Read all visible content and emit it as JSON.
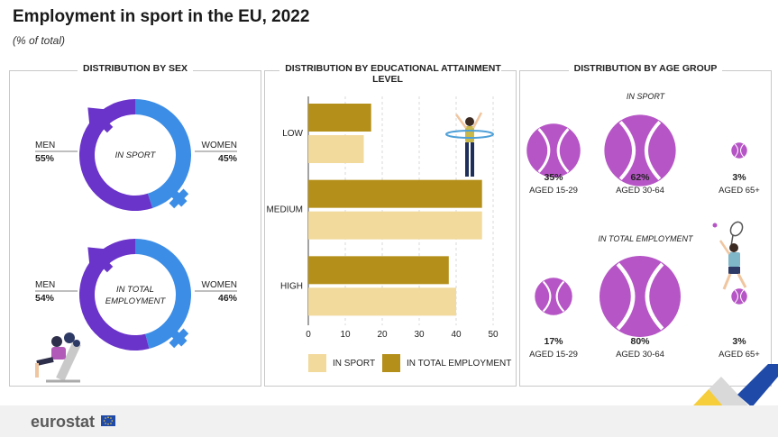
{
  "header": {
    "title": "Employment in sport in the EU, 2022",
    "subtitle": "(% of total)"
  },
  "footer": {
    "logo": "eurostat"
  },
  "colors": {
    "men": "#6a33c9",
    "women": "#3c8de6",
    "in_sport_bar": "#f2d99c",
    "total_employment_bar": "#b4901a",
    "age_ball": "#b655c6"
  },
  "icons": {
    "male_symbol": "mars-icon",
    "female_symbol": "venus-icon",
    "weightlifter": "weightlifter-illustration",
    "hula_hoop": "hula-hoop-illustration",
    "tennis_player": "tennis-player-illustration",
    "ball": "tennis-ball-icon"
  },
  "chart_data": [
    {
      "type": "pie",
      "panel_title": "DISTRIBUTION BY SEX",
      "donuts": [
        {
          "center_label": "IN SPORT",
          "slices": [
            {
              "label": "MEN",
              "value": 55,
              "display": "55%"
            },
            {
              "label": "WOMEN",
              "value": 45,
              "display": "45%"
            }
          ]
        },
        {
          "center_label_line1": "IN TOTAL",
          "center_label_line2": "EMPLOYMENT",
          "slices": [
            {
              "label": "MEN",
              "value": 54,
              "display": "54%"
            },
            {
              "label": "WOMEN",
              "value": 46,
              "display": "46%"
            }
          ]
        }
      ]
    },
    {
      "type": "bar",
      "orientation": "horizontal",
      "panel_title": "DISTRIBUTION BY EDUCATIONAL ATTAINMENT LEVEL",
      "categories": [
        "LOW",
        "MEDIUM",
        "HIGH"
      ],
      "series": [
        {
          "name": "IN TOTAL EMPLOYMENT",
          "values": [
            17,
            47,
            38
          ]
        },
        {
          "name": "IN SPORT",
          "values": [
            15,
            47,
            40
          ]
        }
      ],
      "xlim": [
        0,
        50
      ],
      "xticks": [
        0,
        10,
        20,
        30,
        40,
        50
      ],
      "grid": true,
      "legend": "bottom",
      "legend_items": [
        "IN SPORT",
        "IN TOTAL EMPLOYMENT"
      ]
    },
    {
      "type": "scatter",
      "panel_title": "DISTRIBUTION BY AGE GROUP",
      "groups": [
        {
          "label": "IN SPORT",
          "items": [
            {
              "label": "AGED 15-29",
              "value": 35,
              "display": "35%"
            },
            {
              "label": "AGED 30-64",
              "value": 62,
              "display": "62%"
            },
            {
              "label": "AGED 65+",
              "value": 3,
              "display": "3%"
            }
          ]
        },
        {
          "label": "IN TOTAL EMPLOYMENT",
          "items": [
            {
              "label": "AGED 15-29",
              "value": 17,
              "display": "17%"
            },
            {
              "label": "AGED 30-64",
              "value": 80,
              "display": "80%"
            },
            {
              "label": "AGED 65+",
              "value": 3,
              "display": "3%"
            }
          ]
        }
      ]
    }
  ]
}
